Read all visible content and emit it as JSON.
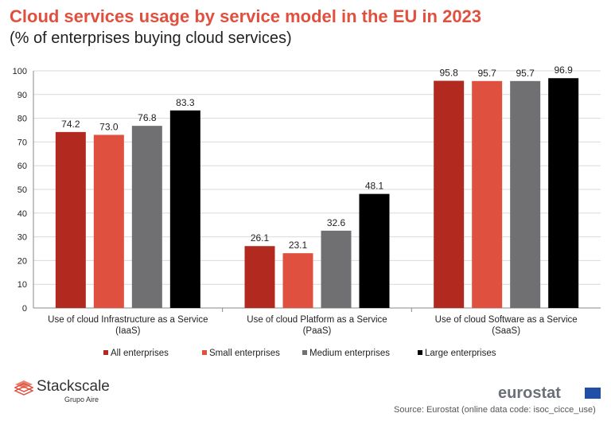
{
  "chart_data": {
    "type": "bar",
    "title": "Cloud services usage by service model in the EU in 2023",
    "subtitle": "(% of enterprises buying cloud services)",
    "categories": [
      [
        "Use of cloud Infrastructure as a Service",
        "(IaaS)"
      ],
      [
        "Use of cloud Platform as a Service",
        "(PaaS)"
      ],
      [
        "Use of cloud Software as a Service",
        "(SaaS)"
      ]
    ],
    "series": [
      {
        "name": "All enterprises",
        "color": "#b22a1f",
        "values": [
          74.2,
          26.1,
          95.8
        ]
      },
      {
        "name": "Small enterprises",
        "color": "#e0503f",
        "values": [
          73.0,
          23.1,
          95.7
        ]
      },
      {
        "name": "Medium enterprises",
        "color": "#707072",
        "values": [
          76.8,
          32.6,
          95.7
        ]
      },
      {
        "name": "Large enterprises",
        "color": "#000000",
        "values": [
          83.3,
          48.1,
          96.9
        ]
      }
    ],
    "ylim": [
      0,
      100
    ],
    "yticks": [
      0,
      10,
      20,
      30,
      40,
      50,
      60,
      70,
      80,
      90,
      100
    ],
    "grid": true,
    "legend": "bottom"
  },
  "footer": {
    "brand": "Stackscale",
    "brand_sub": "Grupo Aire",
    "eurostat": "eurostat",
    "source": "Source: Eurostat (online data code: isoc_cicce_use)"
  }
}
